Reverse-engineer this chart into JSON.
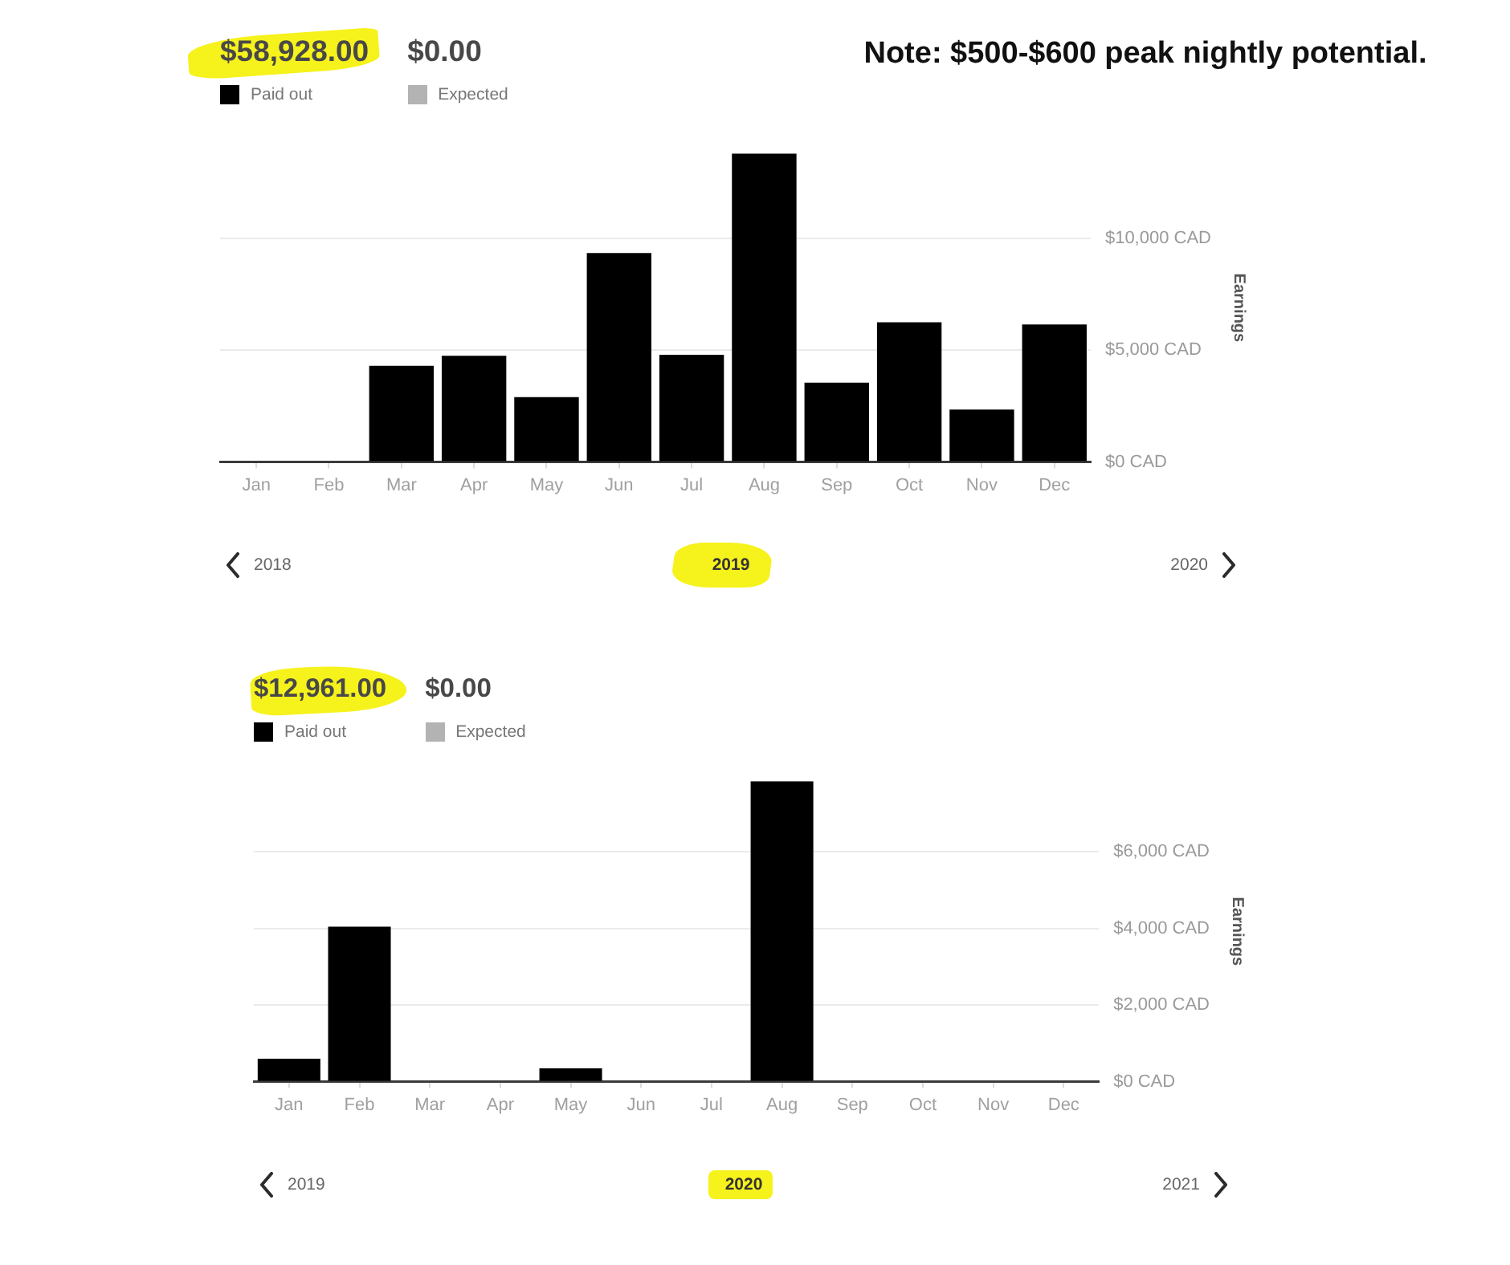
{
  "chart_data": [
    {
      "type": "bar",
      "categories": [
        "Jan",
        "Feb",
        "Mar",
        "Apr",
        "May",
        "Jun",
        "Jul",
        "Aug",
        "Sep",
        "Oct",
        "Nov",
        "Dec"
      ],
      "series": [
        {
          "name": "Paid out",
          "color": "#000000",
          "values": [
            null,
            null,
            4300,
            4750,
            2900,
            9350,
            4800,
            13800,
            3550,
            6250,
            2350,
            6150
          ]
        },
        {
          "name": "Expected",
          "color": "#b3b3b3",
          "values": [
            null,
            null,
            null,
            null,
            null,
            null,
            null,
            null,
            null,
            null,
            null,
            null
          ]
        }
      ],
      "stacked": true,
      "ylim": [
        0,
        13800
      ],
      "yticks": [
        {
          "value": 0,
          "label": "$0 CAD"
        },
        {
          "value": 5000,
          "label": "$5,000 CAD"
        },
        {
          "value": 10000,
          "label": "$10,000 CAD"
        }
      ],
      "ylabel": "Earnings",
      "xlabel": "2019",
      "grid": "y",
      "legend": "top left",
      "annotations": [
        "$58,928.00",
        "$0.00",
        "2018",
        "2020",
        "Note: $500-$600 peak nightly potential."
      ]
    },
    {
      "type": "bar",
      "categories": [
        "Jan",
        "Feb",
        "Mar",
        "Apr",
        "May",
        "Jun",
        "Jul",
        "Aug",
        "Sep",
        "Oct",
        "Nov",
        "Dec"
      ],
      "series": [
        {
          "name": "Paid out",
          "color": "#000000",
          "values": [
            600,
            4050,
            null,
            null,
            350,
            null,
            null,
            7850,
            null,
            null,
            null,
            null
          ]
        },
        {
          "name": "Expected",
          "color": "#b3b3b3",
          "values": [
            null,
            null,
            null,
            null,
            null,
            null,
            null,
            null,
            null,
            null,
            null,
            null
          ]
        }
      ],
      "stacked": true,
      "ylim": [
        0,
        7850
      ],
      "yticks": [
        {
          "value": 0,
          "label": "$0 CAD"
        },
        {
          "value": 2000,
          "label": "$2,000 CAD"
        },
        {
          "value": 4000,
          "label": "$4,000 CAD"
        },
        {
          "value": 6000,
          "label": "$6,000 CAD"
        }
      ],
      "ylabel": "Earnings",
      "xlabel": "2020",
      "grid": "y",
      "legend": "top left",
      "annotations": [
        "$12,961.00",
        "$0.00",
        "2019",
        "2021"
      ]
    }
  ]
}
